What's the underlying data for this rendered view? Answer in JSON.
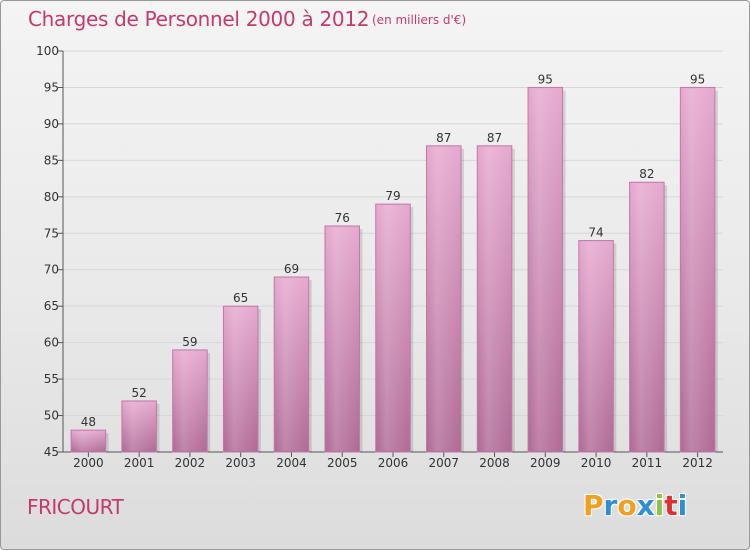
{
  "header": {
    "title": "Charges de Personnel 2000 à 2012",
    "subtitle": "(en milliers d'€)"
  },
  "footer": {
    "commune": "FRICOURT",
    "logo_letters": [
      "P",
      "r",
      "o",
      "x",
      "i",
      "t",
      "i"
    ],
    "logo_colors": [
      "#f0a020",
      "#2f8fd5",
      "#f0a020",
      "#2f8fd5",
      "#8bc34a",
      "#e03030",
      "#2f8fd5"
    ]
  },
  "chart_data": {
    "type": "bar",
    "categories": [
      "2000",
      "2001",
      "2002",
      "2003",
      "2004",
      "2005",
      "2006",
      "2007",
      "2008",
      "2009",
      "2010",
      "2011",
      "2012"
    ],
    "values": [
      48,
      52,
      59,
      65,
      69,
      76,
      79,
      87,
      87,
      95,
      74,
      82,
      95
    ],
    "value_labels": [
      "48",
      "52",
      "59",
      "65",
      "69",
      "76",
      "79",
      "87",
      "87",
      "95",
      "74",
      "82",
      "95"
    ],
    "ylim": [
      45,
      100
    ],
    "yticks": [
      45,
      50,
      55,
      60,
      65,
      70,
      75,
      80,
      85,
      90,
      95,
      100
    ],
    "ytick_labels": [
      "45",
      "50",
      "55",
      "60",
      "65",
      "70",
      "75",
      "80",
      "85",
      "90",
      "95",
      "100"
    ],
    "grid": true,
    "bar_color": "#d98ab8"
  }
}
